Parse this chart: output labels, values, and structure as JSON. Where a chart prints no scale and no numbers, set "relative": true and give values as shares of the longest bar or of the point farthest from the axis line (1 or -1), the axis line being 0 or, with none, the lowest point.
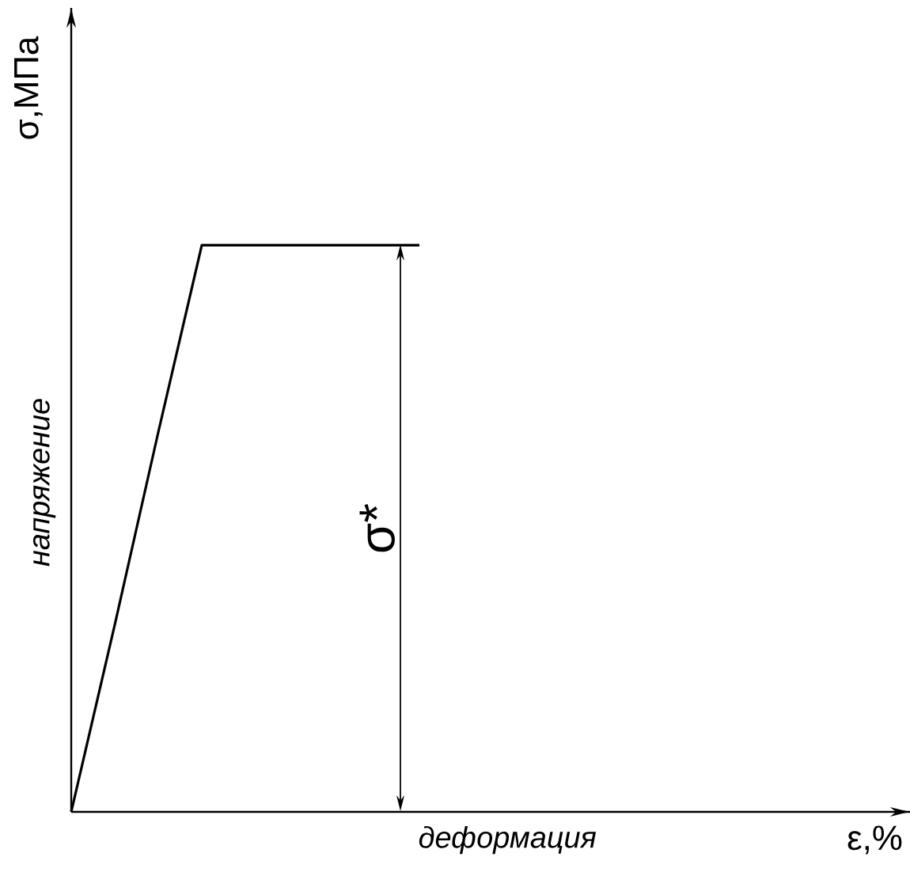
{
  "chart_data": {
    "type": "line",
    "relative": true,
    "ylabel": "σ,МПа",
    "marker": "none",
    "categories": [
      null,
      null,
      null,
      null,
      null,
      null,
      null,
      null,
      null
    ],
    "series": [
      {
        "color": "#000000",
        "values": [
          0,
          0.33,
          0.67,
          1,
          1,
          1,
          1,
          1,
          1
        ]
      }
    ],
    "annotations": [
      "напряжение",
      "деформация",
      "σ*",
      "ε,%"
    ]
  }
}
